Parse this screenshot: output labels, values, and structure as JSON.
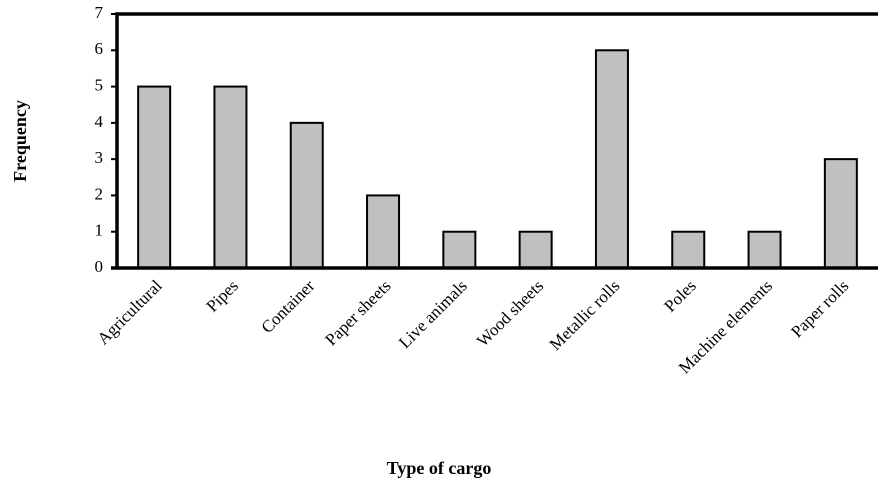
{
  "chart_data": {
    "type": "bar",
    "x_label": "Type of cargo",
    "y_label": "Frequency",
    "categories": [
      "Agricultural",
      "Pipes",
      "Container",
      "Paper sheets",
      "Live animals",
      "Wood sheets",
      "Metallic rolls",
      "Poles",
      "Machine elements",
      "Paper rolls"
    ],
    "values": [
      5,
      5,
      4,
      2,
      1,
      1,
      6,
      1,
      1,
      3
    ],
    "color": "#c0c0c0",
    "ylim": [
      0,
      7
    ],
    "yticks": [
      0,
      1,
      2,
      3,
      4,
      5,
      6,
      7
    ],
    "grid": false
  }
}
